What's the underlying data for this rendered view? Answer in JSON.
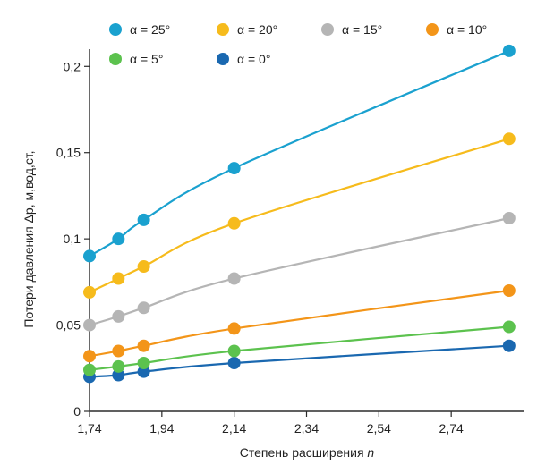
{
  "chart_data": {
    "type": "line",
    "title": "",
    "xlabel": "Степень расширения ",
    "xlabel_italic": "n",
    "ylabel": "Потери давления Δp, м,вод,ст,",
    "xlim": [
      1.74,
      2.94
    ],
    "ylim": [
      0,
      0.21
    ],
    "x_ticks": [
      1.74,
      1.94,
      2.14,
      2.34,
      2.54,
      2.74
    ],
    "x_tick_labels": [
      "1,74",
      "1,94",
      "2,14",
      "2,34",
      "2,54",
      "2,74"
    ],
    "y_ticks": [
      0,
      0.05,
      0.1,
      0.15,
      0.2
    ],
    "y_tick_labels": [
      "0",
      "0,05",
      "0,1",
      "0,15",
      "0,2"
    ],
    "grid": false,
    "legend_position": "top",
    "x": [
      1.74,
      1.82,
      1.89,
      2.14,
      2.9
    ],
    "series": [
      {
        "name": "α = 25°",
        "color": "#1aa1cf",
        "values": [
          0.09,
          0.1,
          0.111,
          0.141,
          0.209
        ]
      },
      {
        "name": "α = 20°",
        "color": "#f6bb1c",
        "values": [
          0.069,
          0.077,
          0.084,
          0.109,
          0.158
        ]
      },
      {
        "name": "α = 15°",
        "color": "#b5b5b5",
        "values": [
          0.05,
          0.055,
          0.06,
          0.077,
          0.112
        ]
      },
      {
        "name": "α = 10°",
        "color": "#f39519",
        "values": [
          0.032,
          0.035,
          0.038,
          0.048,
          0.07
        ]
      },
      {
        "name": "α = 5°",
        "color": "#5cc24e",
        "values": [
          0.024,
          0.026,
          0.028,
          0.035,
          0.049
        ]
      },
      {
        "name": "α = 0°",
        "color": "#1a68b0",
        "values": [
          0.02,
          0.021,
          0.023,
          0.028,
          0.038
        ]
      }
    ]
  }
}
